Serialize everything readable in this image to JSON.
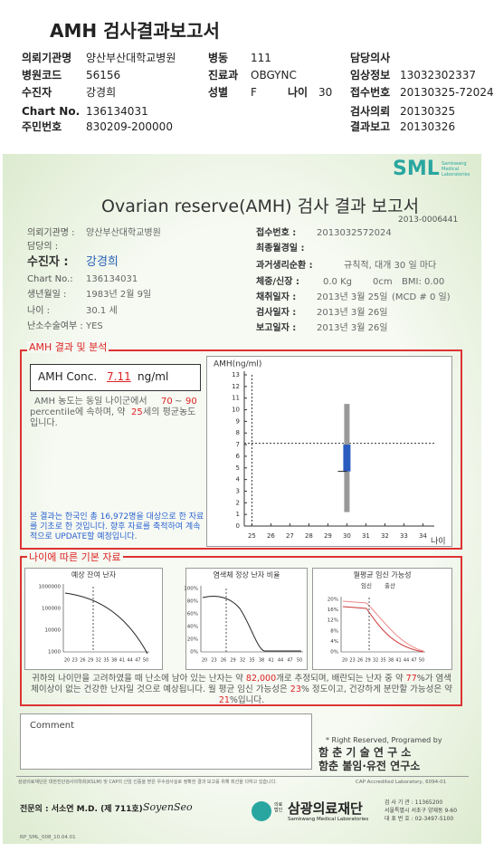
{
  "header": {
    "title": "AMH 검사결과보고서",
    "rows": [
      [
        "의뢰기관명",
        "양산부산대학교병원",
        "병동",
        "111",
        "담당의사"
      ],
      [
        "병원코드",
        "56156",
        "진료과",
        "OBGYNC",
        "임상정보",
        "13032302337"
      ],
      [
        "수진자",
        "강경희",
        "성별",
        "F",
        "나이",
        "30",
        "접수번호",
        "20130325-72024"
      ],
      [
        "Chart No.",
        "136134031",
        "검사의뢰",
        "20130325"
      ],
      [
        "주민번호",
        "830209-200000",
        "결과보고",
        "20130326"
      ]
    ]
  },
  "report": {
    "logo": "SML",
    "logo_sub": [
      "Samkwang",
      "Medical",
      "Laboratories"
    ],
    "title": "Ovarian reserve(AMH) 검사 결과 보고서",
    "report_no": "2013-0006441",
    "patient_left": [
      [
        "의뢰기관명 :",
        "양산부산대학교병원"
      ],
      [
        "담당의 :"
      ],
      [
        "수진자 :",
        "강경희"
      ],
      [
        "Chart No.:",
        "136134031"
      ],
      [
        "생년월일 :",
        "1983년 2월 9일"
      ],
      [
        "나이 :",
        "30.1 세"
      ],
      [
        "난소수술여부 :",
        "YES"
      ]
    ],
    "patient_right": [
      [
        "접수번호 :",
        "2013032572024"
      ],
      [
        "최종월경일 :"
      ],
      [
        "과거생리순환 :",
        "규칙적, 대개  30 일 마다"
      ],
      [
        "체중/신장 :",
        "0.0 Kg",
        "0cm",
        "BMI:  0.00"
      ],
      [
        "채취일자 :",
        "2013년 3월 25일",
        "(MCD #  0 일)"
      ],
      [
        "검사일자 :",
        "2013년 3월 26일"
      ],
      [
        "보고일자 :",
        "2013년 3월 26일"
      ]
    ],
    "amh": {
      "section_title": "AMH 결과 및 분석",
      "conc_label": "AMH Conc.",
      "value": 7.11,
      "unit": "ng/ml",
      "desc": [
        "AMH 농도는 동일 나이군에서",
        "70",
        "~",
        "90",
        "percentile에 속하며, 약",
        "25",
        "세의 평균농도",
        "입니다."
      ],
      "note": "본 결과는 한국인 총 16,972명을 대상으로 한 자료를 기초로 한 것입니다. 향후 자료를 축적하여 계속적으로 UPDATE할 예정입니다.",
      "chart": {
        "type": "range",
        "y_label": "AMH(ng/ml)",
        "x_label": "나이",
        "xlim": [
          24.6,
          34.6
        ],
        "ylim": [
          0,
          13
        ],
        "xticks": [
          25,
          26,
          27,
          28,
          29,
          30,
          31,
          32,
          33,
          34
        ],
        "yticks": [
          0,
          1,
          2,
          3,
          4,
          5,
          6,
          7,
          8,
          9,
          10,
          11,
          12,
          13
        ],
        "age": 30,
        "low": 1.2,
        "q1": 4.7,
        "q3": 7,
        "high": 10.5
      }
    },
    "basic": {
      "section_title": "나이에 따른 기본 자료",
      "charts": [
        {
          "title": "예상 잔여 난자",
          "yticks": [
            "1000000",
            "100000",
            "10000",
            "1000"
          ],
          "xticks": [
            "20",
            "23",
            "26",
            "29",
            "32",
            "35",
            "38",
            "41",
            "44",
            "47",
            "50"
          ]
        },
        {
          "title": "염색체 정상 난자 비율",
          "yticks": [
            "100%",
            "80%",
            "60%",
            "40%",
            "20%",
            "0%"
          ],
          "xticks": [
            "20",
            "23",
            "26",
            "29",
            "32",
            "35",
            "38",
            "41",
            "44",
            "47",
            "50"
          ]
        },
        {
          "title": "월평균 임신 가능성",
          "legend": [
            "임신",
            "출산"
          ],
          "yticks": [
            "20%",
            "16%",
            "12%",
            "8%",
            "4%",
            "0%"
          ],
          "xticks": [
            "20",
            "23",
            "26",
            "29",
            "32",
            "35",
            "38",
            "41",
            "44",
            "47",
            "50"
          ]
        }
      ],
      "summary": [
        "귀하의 나이만을 고려하였을 때 난소에 남아 있는 난자는 약 ",
        "82,000",
        "개로 추정되며, 배란되는 난자 중 약 ",
        "77",
        "%가 염색체이상이 없는 건강한 난자일 것으로 예상됩니다. 월 평균 임신 가능성은 ",
        "23",
        "% 정도이고, 건강하게 분만할 가능성은 약 ",
        "21",
        "%입니다."
      ]
    },
    "comment": "Comment",
    "credit": [
      "* Right Reserved, Programed by",
      "함 춘 기 술 연 구 소",
      "함춘 불임·유전 연구소"
    ],
    "footer": {
      "notice": "삼광의료재단은 대한진단검사의학회(KSLM) 및 CAP의 신임 인증을 받은 우수검사실로 정확한 결과 보고를 위해 최선을 다하고 있습니다.",
      "cap": "CAP Accredited Laboratory, 6094-01",
      "doctor": "전문의 : 서소연 M.D. (제 711호)",
      "signature": "SoyenSeo",
      "org_prefix": "의료법인",
      "org": "삼광의료재단",
      "org_en": "Samkwang Medical Laboratories",
      "contact": [
        "검 사 기 관 : 11365200",
        "서울특별시 서초구 양재동 9-60",
        "대 표 번 호 : 02-3497-5100"
      ],
      "form_code": "RP_SML_008_10.04.01"
    }
  }
}
